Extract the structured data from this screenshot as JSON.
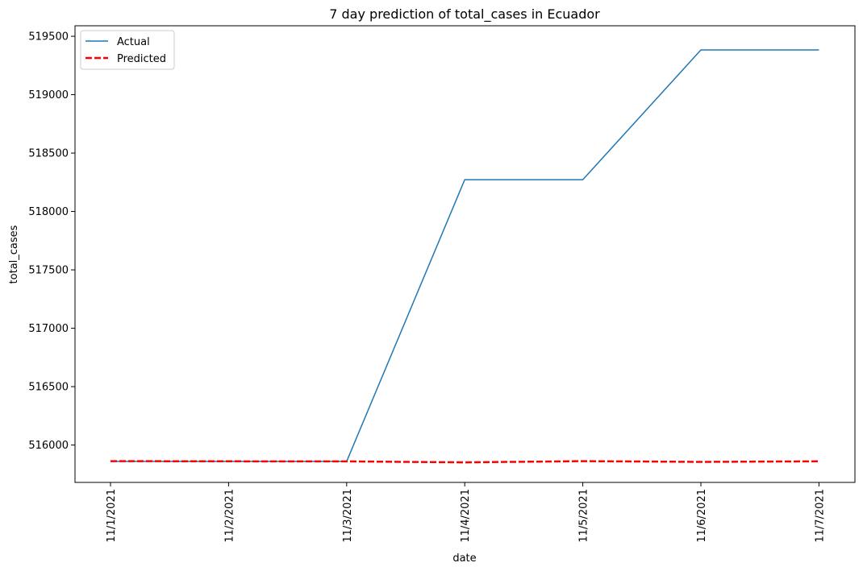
{
  "chart_data": {
    "type": "line",
    "title": "7 day prediction of total_cases in Ecuador",
    "xlabel": "date",
    "ylabel": "total_cases",
    "categories": [
      "11/1/2021",
      "11/2/2021",
      "11/3/2021",
      "11/4/2021",
      "11/5/2021",
      "11/6/2021",
      "11/7/2021"
    ],
    "ylim": [
      515680,
      519590
    ],
    "yticks": [
      516000,
      516500,
      517000,
      517500,
      518000,
      518500,
      519000,
      519500
    ],
    "series": [
      {
        "name": "Actual",
        "color": "#1f77b4",
        "style": "solid",
        "values": [
          515860,
          515860,
          515860,
          518272,
          518272,
          519383,
          519383
        ]
      },
      {
        "name": "Predicted",
        "color": "#ff0000",
        "style": "dashed",
        "values": [
          515862,
          515861,
          515860,
          515852,
          515862,
          515856,
          515861
        ]
      }
    ],
    "legend_position": "top-left",
    "grid": false
  }
}
